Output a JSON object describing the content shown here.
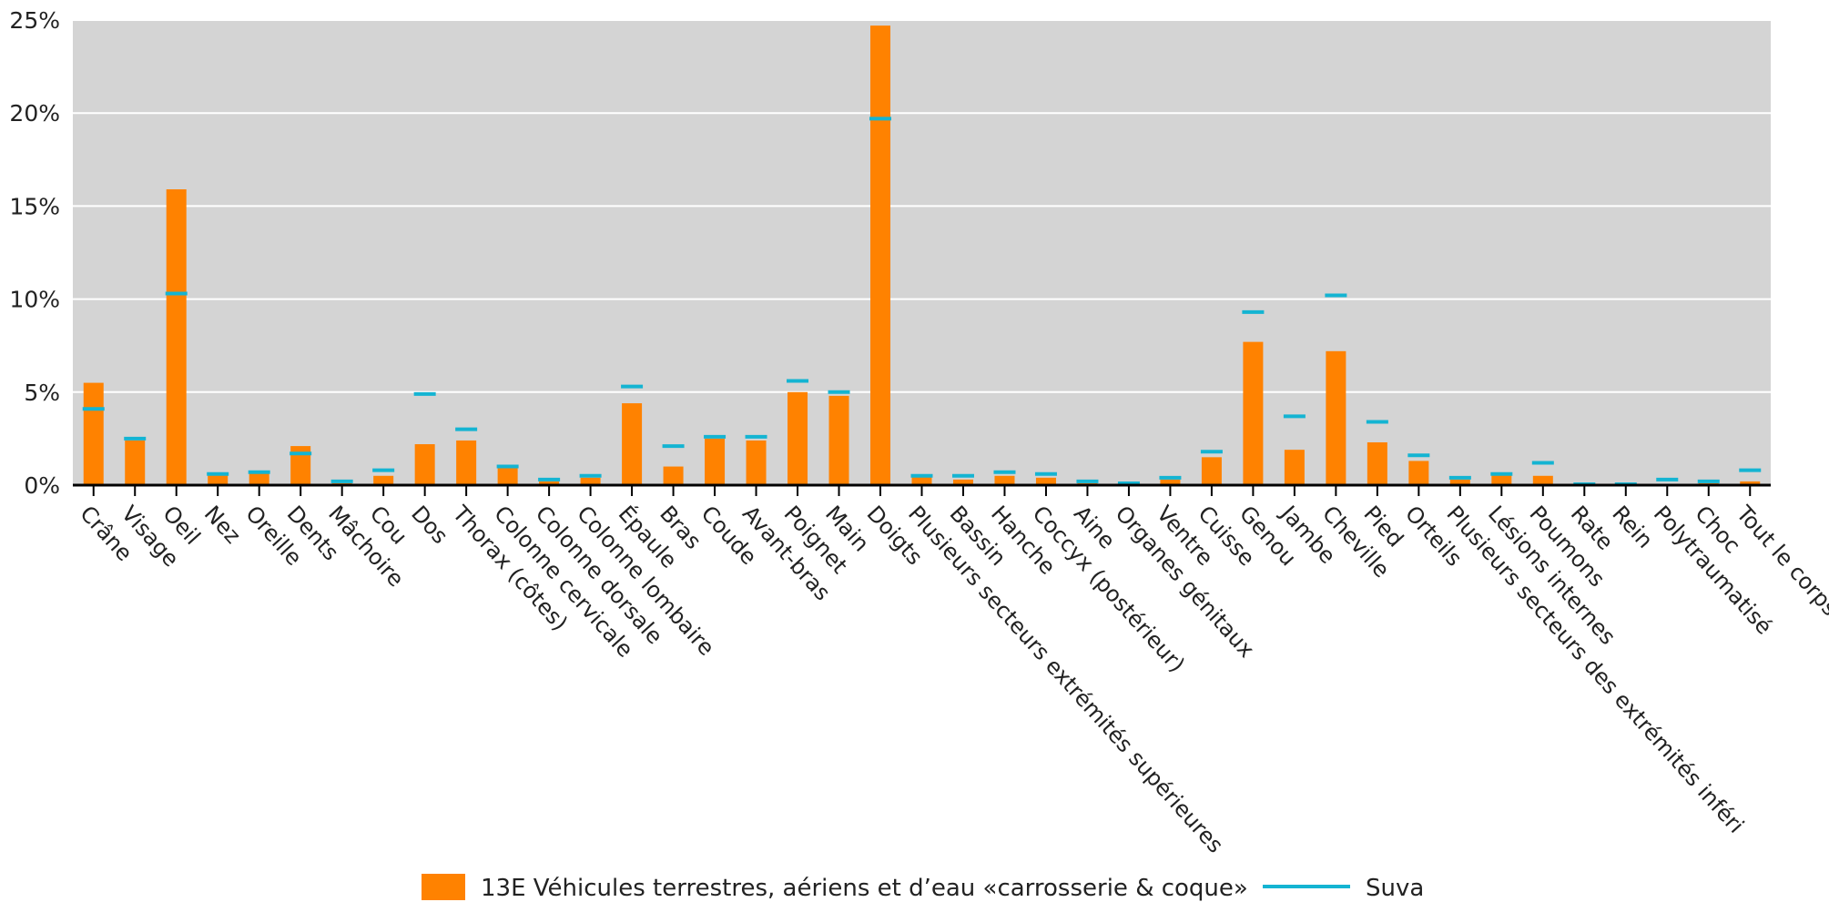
{
  "chart_data": {
    "type": "bar",
    "title": "",
    "xlabel": "",
    "ylabel": "",
    "ylim": [
      0,
      25
    ],
    "yticks": [
      "0%",
      "5%",
      "10%",
      "15%",
      "20%",
      "25%"
    ],
    "grid": true,
    "legend_position": "bottom",
    "categories": [
      "Crâne",
      "Visage",
      "Oeil",
      "Nez",
      "Oreille",
      "Dents",
      "Mâchoire",
      "Cou",
      "Dos",
      "Thorax (côtes)",
      "Colonne cervicale",
      "Colonne dorsale",
      "Colonne lombaire",
      "Épaule",
      "Bras",
      "Coude",
      "Avant-bras",
      "Poignet",
      "Main",
      "Doigts",
      "Plusieurs secteurs extrémités supérieures",
      "Bassin",
      "Hanche",
      "Coccyx (postérieur)",
      "Aine",
      "Organes génitaux",
      "Ventre",
      "Cuisse",
      "Genou",
      "Jambe",
      "Cheville",
      "Pied",
      "Orteils",
      "Plusieurs secteurs des extrémités inféri",
      "Lésions internes",
      "Poumons",
      "Rate",
      "Rein",
      "Polytraumatisé",
      "Choc",
      "Tout le corps"
    ],
    "series": [
      {
        "name": "13E Véhicules terrestres, aériens et d’eau «carrosserie & coque»",
        "kind": "bar",
        "color": "#FF8200",
        "values": [
          5.5,
          2.4,
          15.9,
          0.6,
          0.7,
          2.1,
          0.1,
          0.5,
          2.2,
          2.4,
          1.0,
          0.2,
          0.4,
          4.4,
          1.0,
          2.5,
          2.4,
          5.0,
          4.8,
          24.7,
          0.5,
          0.3,
          0.5,
          0.4,
          0.1,
          0.05,
          0.3,
          1.5,
          7.7,
          1.9,
          7.2,
          2.3,
          1.3,
          0.3,
          0.6,
          0.5,
          0.0,
          0.0,
          0.0,
          0.1,
          0.2
        ]
      },
      {
        "name": "Suva",
        "kind": "marker",
        "color": "#14B4D2",
        "values": [
          4.1,
          2.5,
          10.3,
          0.6,
          0.7,
          1.7,
          0.2,
          0.8,
          4.9,
          3.0,
          1.0,
          0.3,
          0.5,
          5.3,
          2.1,
          2.6,
          2.6,
          5.6,
          5.0,
          19.7,
          0.5,
          0.5,
          0.7,
          0.6,
          0.2,
          0.1,
          0.4,
          1.8,
          9.3,
          3.7,
          10.2,
          3.4,
          1.6,
          0.4,
          0.6,
          1.2,
          0.05,
          0.05,
          0.3,
          0.2,
          0.8
        ]
      }
    ]
  }
}
